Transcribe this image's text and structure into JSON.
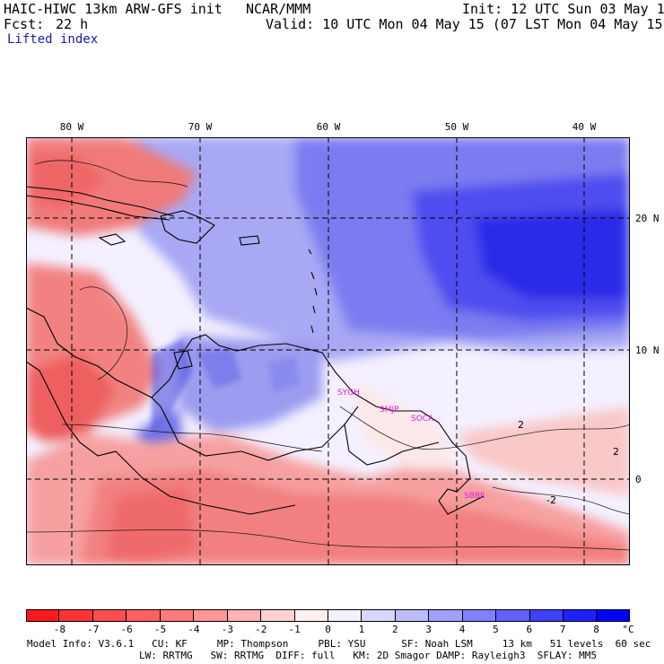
{
  "header": {
    "model": "HAIC-HIWC 13km ARW-GFS init",
    "org": "NCAR/MMM",
    "init": "Init: 12 UTC Sun 03 May 15",
    "fcst_label": "Fcst:",
    "fcst_value": "22 h",
    "valid": "Valid: 10 UTC Mon 04 May 15 (07 LST Mon 04 May 15)",
    "field": "Lifted index"
  },
  "map": {
    "lon_labels": [
      "80 W",
      "70 W",
      "60 W",
      "50 W",
      "40 W"
    ],
    "lat_labels": [
      "20 N",
      "10 N",
      "0"
    ],
    "stations": [
      "SYGH",
      "SMJP",
      "SOCA",
      "SBBE"
    ],
    "contour_labels": [
      "2",
      "2",
      "-2"
    ]
  },
  "colorbar": {
    "labels": [
      "-8",
      "-7",
      "-6",
      "-5",
      "-4",
      "-3",
      "-2",
      "-1",
      "0",
      "1",
      "2",
      "3",
      "4",
      "5",
      "6",
      "7",
      "8"
    ],
    "unit": "°C",
    "colors": [
      "#ff1a1a",
      "#ff3333",
      "#ff4d4d",
      "#ff6060",
      "#ff7a7a",
      "#ff9595",
      "#ffb3b3",
      "#ffd2d2",
      "#fff0f0",
      "#f2f2ff",
      "#d8d8ff",
      "#bcbcff",
      "#a0a0ff",
      "#8080ff",
      "#6060ff",
      "#4040ff",
      "#2020ff",
      "#0000ff"
    ]
  },
  "footer": {
    "line1": "Model Info: V3.6.1   CU: KF     MP: Thompson     PBL: YSU      SF: Noah LSM     13 km   51 levels  60 sec",
    "line2": "LW: RRTMG   SW: RRTMG  DIFF: full   KM: 2D Smagor DAMP: Rayleigh3  SFLAY: MM5"
  }
}
